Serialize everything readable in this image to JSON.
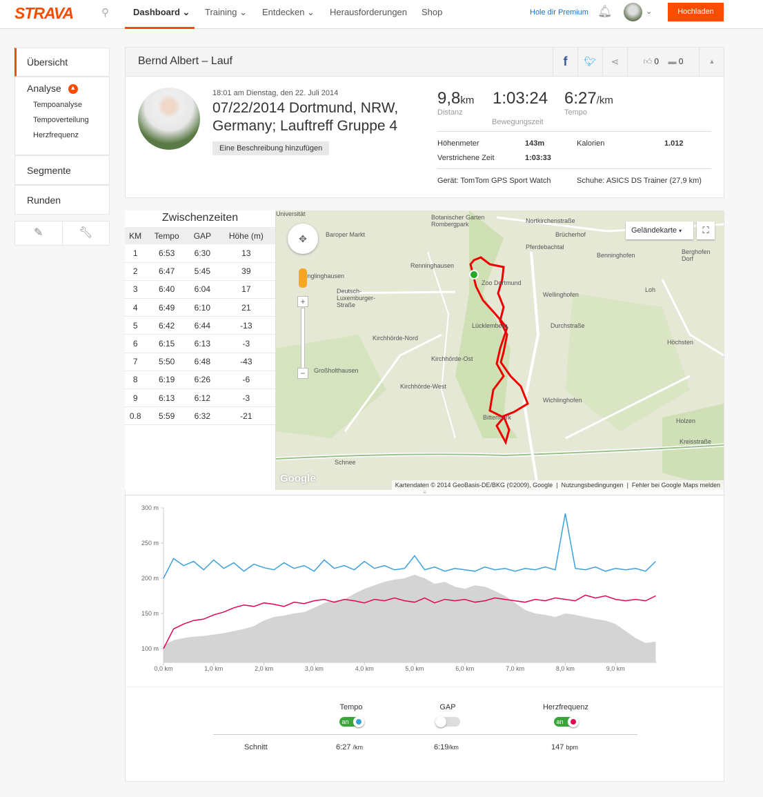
{
  "nav": {
    "logo": "STRAVA",
    "items": [
      {
        "label": "Dashboard ⌄"
      },
      {
        "label": "Training ⌄"
      },
      {
        "label": "Entdecken ⌄"
      },
      {
        "label": "Herausforderungen"
      },
      {
        "label": "Shop"
      }
    ],
    "premium": "Hole dir Premium",
    "upload": "Hochladen"
  },
  "sidebar": {
    "overview": "Übersicht",
    "analysis": "Analyse",
    "sub": [
      "Tempoanalyse",
      "Tempoverteilung",
      "Herzfrequenz"
    ],
    "segments": "Segmente",
    "laps": "Runden"
  },
  "activity": {
    "title": "Bernd Albert – Lauf",
    "likes": "0",
    "comments": "0",
    "datetime": "18:01 am Dienstag, den 22. Juli 2014",
    "name": "07/22/2014 Dortmund, NRW, Germany; Lauftreff Gruppe 4",
    "add_description": "Eine Beschreibung hinzufügen",
    "distance": "9,8",
    "distance_unit": "km",
    "distance_label": "Distanz",
    "moving_time": "1:03:24",
    "moving_label": "Bewegungszeit",
    "pace": "6:27",
    "pace_unit": "/km",
    "pace_label": "Tempo",
    "elev_label": "Höhenmeter",
    "elev": "143m",
    "cal_label": "Kalorien",
    "cal": "1.012",
    "elapsed_label": "Verstrichene Zeit",
    "elapsed": "1:03:33",
    "device": "Gerät: TomTom GPS Sport Watch",
    "shoes": "Schuhe: ASICS DS Trainer (27,9 km)"
  },
  "splits": {
    "title": "Zwischenzeiten",
    "headers": [
      "KM",
      "Tempo",
      "GAP",
      "Höhe (m)"
    ],
    "rows": [
      [
        "1",
        "6:53",
        "6:30",
        "13"
      ],
      [
        "2",
        "6:47",
        "5:45",
        "39"
      ],
      [
        "3",
        "6:40",
        "6:04",
        "17"
      ],
      [
        "4",
        "6:49",
        "6:10",
        "21"
      ],
      [
        "5",
        "6:42",
        "6:44",
        "-13"
      ],
      [
        "6",
        "6:15",
        "6:13",
        "-3"
      ],
      [
        "7",
        "5:50",
        "6:48",
        "-43"
      ],
      [
        "8",
        "6:19",
        "6:26",
        "-6"
      ],
      [
        "9",
        "6:13",
        "6:12",
        "-3"
      ],
      [
        "0.8",
        "5:59",
        "6:32",
        "-21"
      ]
    ]
  },
  "map": {
    "type_button": "Geländekarte",
    "attribution": "Kartendaten © 2014 GeoBasis-DE/BKG (©2009), Google",
    "terms": "Nutzungsbedingungen",
    "report": "Fehler bei Google Maps melden",
    "google": "Google",
    "labels": [
      "Universität",
      "Botanischer Garten Rombergpark",
      "Baroper Markt",
      "Nortkirchenstraße",
      "Brücherhof",
      "Pferdebachtal",
      "Benninghofen",
      "Berghofen Dorf",
      "Renninghausen",
      "Menglinghausen",
      "Zoo Dortmund",
      "Wellinghofen",
      "Deutsch-Luxemburger-Straße",
      "Lücklemberg",
      "Loh",
      "Durchstraße",
      "Kirchhörde-Nord",
      "Höchsten",
      "Kirchhörde-Ost",
      "Großholthausen",
      "Kirchhörde-West",
      "Wichlinghofen",
      "Bittermark",
      "Holzen",
      "Kreisstraße",
      "Schnee"
    ]
  },
  "chart_data": {
    "type": "line",
    "y_ticks": [
      "300 m",
      "250 m",
      "200 m",
      "150 m",
      "100 m"
    ],
    "ylim": [
      100,
      300
    ],
    "x_ticks": [
      "0,0 km",
      "1,0 km",
      "2,0 km",
      "3,0 km",
      "4,0 km",
      "5,0 km",
      "6,0 km",
      "7,0 km",
      "8,0 km",
      "9,0 km"
    ],
    "xlim": [
      0,
      9.8
    ],
    "x_step_km": 0.2,
    "elevation": [
      105,
      112,
      115,
      117,
      118,
      120,
      122,
      125,
      128,
      132,
      140,
      145,
      147,
      150,
      152,
      158,
      165,
      168,
      170,
      178,
      185,
      190,
      195,
      198,
      200,
      205,
      200,
      192,
      195,
      188,
      185,
      190,
      188,
      182,
      175,
      165,
      155,
      150,
      148,
      145,
      150,
      148,
      145,
      142,
      140,
      135,
      125,
      115,
      108,
      110
    ],
    "series": [
      {
        "name": "Tempo",
        "color": "#3aa0dc",
        "values": [
          200,
          228,
          218,
          224,
          212,
          226,
          214,
          222,
          210,
          220,
          215,
          212,
          222,
          214,
          218,
          210,
          226,
          214,
          218,
          212,
          224,
          214,
          218,
          212,
          214,
          232,
          212,
          216,
          210,
          214,
          212,
          210,
          216,
          212,
          214,
          210,
          214,
          212,
          216,
          212,
          292,
          214,
          212,
          216,
          210,
          214,
          212,
          214,
          210,
          224
        ]
      },
      {
        "name": "Herzfrequenz",
        "color": "#e0064f",
        "values": [
          100,
          128,
          135,
          140,
          142,
          148,
          152,
          158,
          162,
          160,
          165,
          163,
          160,
          166,
          164,
          168,
          170,
          166,
          170,
          168,
          165,
          170,
          168,
          172,
          168,
          166,
          172,
          165,
          170,
          168,
          170,
          166,
          168,
          172,
          170,
          168,
          166,
          170,
          168,
          172,
          170,
          168,
          176,
          172,
          175,
          170,
          168,
          170,
          168,
          175
        ]
      }
    ]
  },
  "toggles": {
    "labels": [
      "Tempo",
      "GAP",
      "Herzfrequenz"
    ],
    "on_text": "an",
    "states": [
      "on",
      "off",
      "on"
    ]
  },
  "averages": {
    "label": "Schnitt",
    "tempo": "6:27",
    "tempo_unit": "/km",
    "gap": "6:19",
    "gap_unit": "/km",
    "hr": "147",
    "hr_unit": "bpm"
  }
}
